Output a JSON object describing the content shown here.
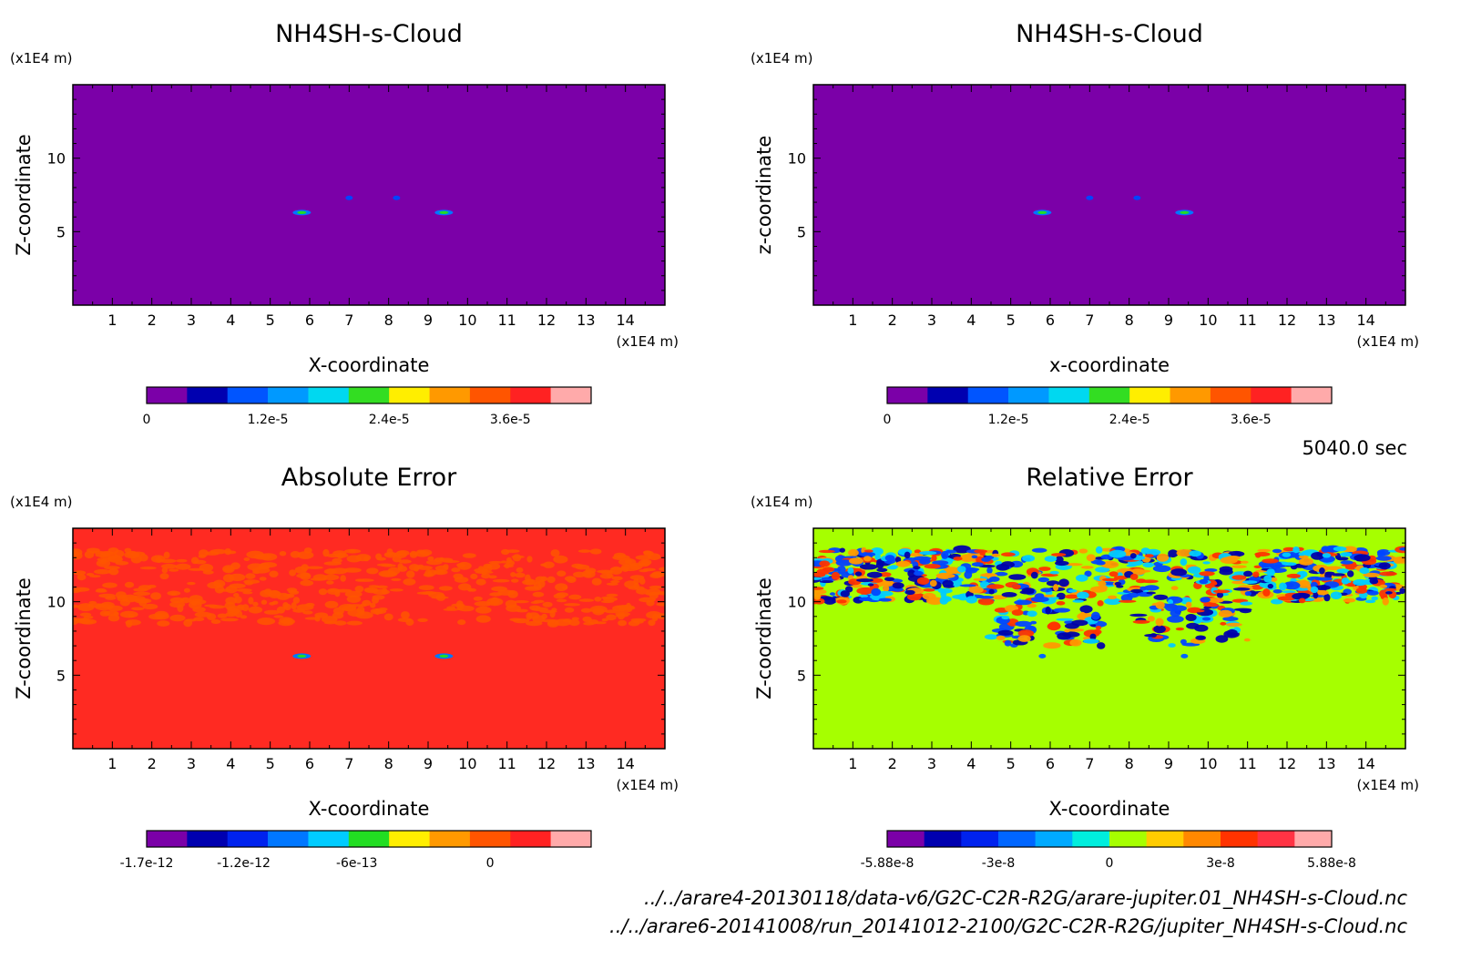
{
  "time_label": "5040.0 sec",
  "file_paths": [
    "../../arare4-20130118/data-v6/G2C-C2R-R2G/arare-jupiter.01_NH4SH-s-Cloud.nc",
    "../../arare6-20141008/run_20141012-2100/G2C-C2R-R2G/jupiter_NH4SH-s-Cloud.nc"
  ],
  "chart_data": [
    {
      "type": "heatmap",
      "title": "NH4SH-s-Cloud",
      "xlabel": "X-coordinate",
      "ylabel": "Z-coordinate",
      "x_unit": "(x1E4 m)",
      "y_unit": "(x1E4 m)",
      "xlim": [
        0,
        15
      ],
      "ylim": [
        0,
        15
      ],
      "x_ticks": [
        "1",
        "2",
        "3",
        "4",
        "5",
        "6",
        "7",
        "8",
        "9",
        "10",
        "11",
        "12",
        "13",
        "14"
      ],
      "y_ticks": [
        "5",
        "10"
      ],
      "background": "#7b00a8",
      "features": [
        {
          "x": 5.8,
          "z": 6.3,
          "kind": "blob"
        },
        {
          "x": 9.4,
          "z": 6.3,
          "kind": "blob"
        },
        {
          "x": 7.0,
          "z": 7.3,
          "kind": "fleck"
        },
        {
          "x": 8.2,
          "z": 7.3,
          "kind": "fleck"
        }
      ],
      "colorbar": {
        "colors": [
          "#7b00a8",
          "#0000b0",
          "#0055ff",
          "#0099ff",
          "#00d8f0",
          "#33dd22",
          "#ffee00",
          "#ff9900",
          "#ff5500",
          "#ff2222",
          "#ffaaaa"
        ],
        "tick_labels": [
          "0",
          "1.2e-5",
          "2.4e-5",
          "3.6e-5"
        ],
        "tick_index": [
          0,
          3,
          6,
          9
        ]
      }
    },
    {
      "type": "heatmap",
      "title": "NH4SH-s-Cloud",
      "xlabel": "x-coordinate",
      "ylabel": "z-coordinate",
      "x_unit": "(x1E4 m)",
      "y_unit": "(x1E4 m)",
      "xlim": [
        0,
        15
      ],
      "ylim": [
        0,
        15
      ],
      "x_ticks": [
        "1",
        "2",
        "3",
        "4",
        "5",
        "6",
        "7",
        "8",
        "9",
        "10",
        "11",
        "12",
        "13",
        "14"
      ],
      "y_ticks": [
        "5",
        "10"
      ],
      "background": "#7b00a8",
      "features": [
        {
          "x": 5.8,
          "z": 6.3,
          "kind": "blob"
        },
        {
          "x": 9.4,
          "z": 6.3,
          "kind": "blob"
        },
        {
          "x": 7.0,
          "z": 7.3,
          "kind": "fleck"
        },
        {
          "x": 8.2,
          "z": 7.3,
          "kind": "fleck"
        }
      ],
      "colorbar": {
        "colors": [
          "#7b00a8",
          "#0000b0",
          "#0055ff",
          "#0099ff",
          "#00d8f0",
          "#33dd22",
          "#ffee00",
          "#ff9900",
          "#ff5500",
          "#ff2222",
          "#ffaaaa"
        ],
        "tick_labels": [
          "0",
          "1.2e-5",
          "2.4e-5",
          "3.6e-5"
        ],
        "tick_index": [
          0,
          3,
          6,
          9
        ]
      }
    },
    {
      "type": "heatmap",
      "title": "Absolute Error",
      "xlabel": "X-coordinate",
      "ylabel": "Z-coordinate",
      "x_unit": "(x1E4 m)",
      "y_unit": "(x1E4 m)",
      "xlim": [
        0,
        15
      ],
      "ylim": [
        0,
        15
      ],
      "x_ticks": [
        "1",
        "2",
        "3",
        "4",
        "5",
        "6",
        "7",
        "8",
        "9",
        "10",
        "11",
        "12",
        "13",
        "14"
      ],
      "y_ticks": [
        "5",
        "10"
      ],
      "background": "#ff2a22",
      "noise_band_z": [
        8.5,
        13.5
      ],
      "noise_colors": [
        "#ff5500"
      ],
      "features": [
        {
          "x": 5.8,
          "z": 6.3,
          "kind": "blob"
        },
        {
          "x": 9.4,
          "z": 6.3,
          "kind": "blob"
        }
      ],
      "colorbar": {
        "colors": [
          "#7b00a8",
          "#0000b0",
          "#0022ee",
          "#0077ff",
          "#00ccff",
          "#22dd22",
          "#ffee00",
          "#ff9900",
          "#ff5500",
          "#ff2222",
          "#ffaaaa"
        ],
        "tick_labels": [
          "-1.7e-12",
          "-1.2e-12",
          "-6e-13",
          "0"
        ],
        "tick_index": [
          0,
          2.4,
          5.2,
          8.5
        ]
      }
    },
    {
      "type": "heatmap",
      "title": "Relative Error",
      "xlabel": "X-coordinate",
      "ylabel": "Z-coordinate",
      "x_unit": "(x1E4 m)",
      "y_unit": "(x1E4 m)",
      "xlim": [
        0,
        15
      ],
      "ylim": [
        0,
        15
      ],
      "x_ticks": [
        "1",
        "2",
        "3",
        "4",
        "5",
        "6",
        "7",
        "8",
        "9",
        "10",
        "11",
        "12",
        "13",
        "14"
      ],
      "y_ticks": [
        "5",
        "10"
      ],
      "background": "#a6ff00",
      "noise_band_z": [
        7.0,
        13.6
      ],
      "noise_colors": [
        "#0044ff",
        "#00ccff",
        "#ff3300",
        "#0000aa",
        "#ff9900"
      ],
      "features": [
        {
          "x": 5.8,
          "z": 6.3,
          "kind": "fleck"
        },
        {
          "x": 9.4,
          "z": 6.3,
          "kind": "fleck"
        }
      ],
      "colorbar": {
        "colors": [
          "#7b00a8",
          "#0000b0",
          "#0022ee",
          "#0066ff",
          "#00aaff",
          "#00eedd",
          "#a6ff00",
          "#ffcc00",
          "#ff8800",
          "#ff3300",
          "#ff3344",
          "#ffaaaa"
        ],
        "tick_labels": [
          "-5.88e-8",
          "-3e-8",
          "0",
          "3e-8",
          "5.88e-8"
        ],
        "tick_index": [
          0,
          3,
          6,
          9,
          12
        ]
      }
    }
  ]
}
